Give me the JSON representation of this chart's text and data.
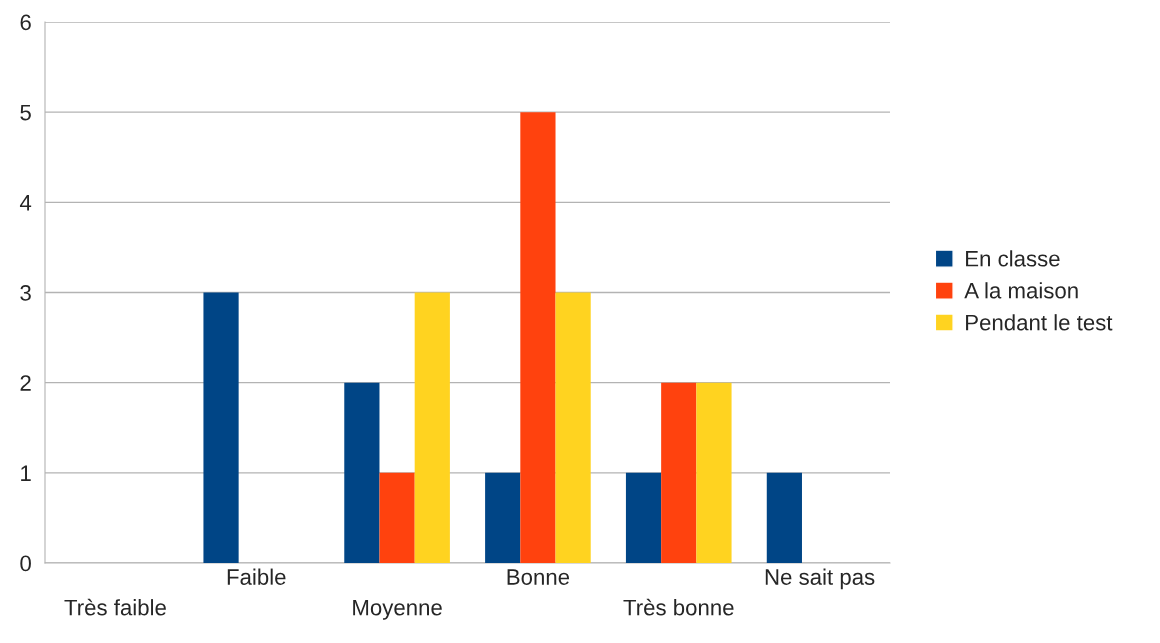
{
  "chart_data": {
    "type": "bar",
    "categories": [
      "Très faible",
      "Faible",
      "Moyenne",
      "Bonne",
      "Très bonne",
      "Ne sait pas"
    ],
    "series": [
      {
        "name": "En classe",
        "color": "#004586",
        "values": [
          0,
          3,
          2,
          1,
          1,
          1
        ]
      },
      {
        "name": "A la maison",
        "color": "#ff420e",
        "values": [
          0,
          0,
          1,
          5,
          2,
          0
        ]
      },
      {
        "name": "Pendant le test",
        "color": "#ffd320",
        "values": [
          0,
          0,
          3,
          3,
          2,
          0
        ]
      }
    ],
    "ylim": [
      0,
      6
    ],
    "yticks": [
      0,
      1,
      2,
      3,
      4,
      5,
      6
    ],
    "grid": "y",
    "legend": "right"
  }
}
